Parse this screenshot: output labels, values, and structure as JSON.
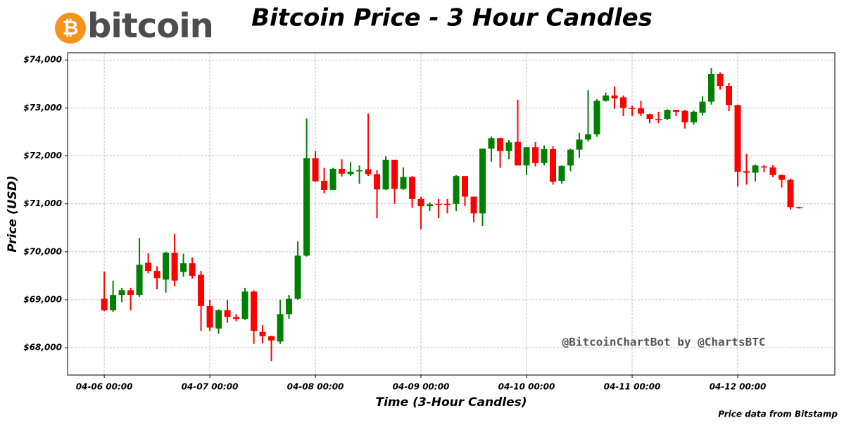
{
  "chart_data": {
    "type": "candlestick",
    "title": "Bitcoin Price - 3 Hour Candles",
    "logo_symbol": "₿",
    "logo_text": "bitcoin",
    "xlabel": "Time (3-Hour Candles)",
    "ylabel": "Price (USD)",
    "watermark": "@BitcoinChartBot by @ChartsBTC",
    "footnote": "Price data from Bitstamp",
    "up_color": "#008000",
    "down_color": "#ff0000",
    "grid": true,
    "xlim": [
      "04-05 15:40",
      "04-12 22:05"
    ],
    "xticks": [
      "04-06 00:00",
      "04-07 00:00",
      "04-08 00:00",
      "04-09 00:00",
      "04-10 00:00",
      "04-11 00:00",
      "04-12 00:00"
    ],
    "ylim": [
      67430,
      74150
    ],
    "yticks": [
      {
        "value": 68000,
        "label": "$68,000"
      },
      {
        "value": 69000,
        "label": "$69,000"
      },
      {
        "value": 70000,
        "label": "$70,000"
      },
      {
        "value": 71000,
        "label": "$71,000"
      },
      {
        "value": 72000,
        "label": "$72,000"
      },
      {
        "value": 73000,
        "label": "$73,000"
      },
      {
        "value": 74000,
        "label": "$74,000"
      }
    ],
    "x": [
      "04-06 00:00",
      "04-06 02:00",
      "04-06 04:00",
      "04-06 06:00",
      "04-06 08:00",
      "04-06 10:00",
      "04-06 12:00",
      "04-06 14:00",
      "04-06 16:00",
      "04-06 18:00",
      "04-06 20:00",
      "04-06 22:00",
      "04-07 00:00",
      "04-07 02:00",
      "04-07 04:00",
      "04-07 06:00",
      "04-07 08:00",
      "04-07 10:00",
      "04-07 12:00",
      "04-07 14:00",
      "04-07 16:00",
      "04-07 18:00",
      "04-07 20:00",
      "04-07 22:00",
      "04-08 00:00",
      "04-08 02:00",
      "04-08 04:00",
      "04-08 06:00",
      "04-08 08:00",
      "04-08 10:00",
      "04-08 12:00",
      "04-08 14:00",
      "04-08 16:00",
      "04-08 18:00",
      "04-08 20:00",
      "04-08 22:00",
      "04-09 00:00",
      "04-09 02:00",
      "04-09 04:00",
      "04-09 06:00",
      "04-09 08:00",
      "04-09 10:00",
      "04-09 12:00",
      "04-09 14:00",
      "04-09 16:00",
      "04-09 18:00",
      "04-09 20:00",
      "04-09 22:00",
      "04-10 00:00",
      "04-10 02:00",
      "04-10 04:00",
      "04-10 06:00",
      "04-10 08:00",
      "04-10 10:00",
      "04-10 12:00",
      "04-10 14:00",
      "04-10 16:00",
      "04-10 18:00",
      "04-10 20:00",
      "04-10 22:00",
      "04-11 00:00",
      "04-11 02:00",
      "04-11 04:00",
      "04-11 06:00",
      "04-11 08:00",
      "04-11 10:00",
      "04-11 12:00",
      "04-11 14:00",
      "04-11 16:00",
      "04-11 18:00",
      "04-11 20:00",
      "04-11 22:00",
      "04-12 00:00",
      "04-12 02:00",
      "04-12 04:00",
      "04-12 06:00",
      "04-12 08:00",
      "04-12 10:00",
      "04-12 12:00",
      "04-12 14:00"
    ],
    "open": [
      69020,
      68780,
      69100,
      69200,
      69100,
      69770,
      69600,
      69420,
      69980,
      69580,
      69760,
      69520,
      68870,
      68400,
      68780,
      68640,
      68600,
      69170,
      68330,
      68240,
      68130,
      68700,
      69020,
      69920,
      71950,
      71480,
      71290,
      71730,
      71620,
      71680,
      71720,
      71620,
      71300,
      71920,
      71310,
      71560,
      71100,
      70950,
      71000,
      71000,
      71000,
      71580,
      71150,
      70800,
      72150,
      72370,
      72100,
      72290,
      71800,
      72180,
      71850,
      72140,
      71480,
      71800,
      72130,
      72340,
      72450,
      73150,
      73260,
      73220,
      73000,
      72990,
      72870,
      72770,
      72770,
      72960,
      72940,
      72700,
      72900,
      73130,
      73710,
      73460,
      73060,
      71680,
      71650,
      71780,
      71760,
      71600,
      71500,
      70930
    ],
    "high": [
      69590,
      69400,
      69250,
      69250,
      70290,
      69970,
      69700,
      70000,
      70370,
      69960,
      69880,
      69600,
      69000,
      68800,
      69000,
      68700,
      69250,
      69200,
      68470,
      68250,
      69000,
      69100,
      70220,
      72780,
      72100,
      71750,
      71750,
      71930,
      71870,
      71800,
      72880,
      71700,
      71990,
      71910,
      71760,
      71580,
      71150,
      71030,
      71100,
      71100,
      71600,
      71550,
      71150,
      72150,
      72400,
      72380,
      72330,
      73170,
      72180,
      72290,
      72220,
      72200,
      71800,
      72150,
      72480,
      73370,
      73180,
      73320,
      73450,
      73260,
      73050,
      73150,
      72880,
      72920,
      72970,
      72960,
      72960,
      72950,
      73250,
      73830,
      73740,
      73520,
      73070,
      72040,
      71820,
      71810,
      71810,
      71610,
      71530,
      70940
    ],
    "low": [
      68760,
      68750,
      68950,
      68780,
      69060,
      69550,
      69220,
      69150,
      69280,
      69480,
      69440,
      68350,
      68350,
      68290,
      68520,
      68550,
      68580,
      68080,
      68090,
      67720,
      68080,
      68600,
      69000,
      69900,
      71450,
      71220,
      71290,
      71570,
      71580,
      71420,
      71580,
      70700,
      71290,
      71000,
      71290,
      70920,
      70470,
      70850,
      70700,
      70800,
      70850,
      70950,
      70620,
      70540,
      71880,
      71750,
      71930,
      71800,
      71600,
      71780,
      71800,
      71400,
      71420,
      71680,
      71960,
      72300,
      72400,
      73130,
      72980,
      72830,
      72830,
      72830,
      72680,
      72680,
      72750,
      72830,
      72570,
      72650,
      72840,
      73070,
      73380,
      72930,
      71360,
      71400,
      71470,
      71660,
      71560,
      71340,
      70880,
      70900
    ],
    "close": [
      68780,
      69100,
      69200,
      69100,
      69730,
      69600,
      69450,
      69980,
      69400,
      69760,
      69500,
      68870,
      68420,
      68780,
      68640,
      68600,
      69170,
      68350,
      68240,
      68150,
      68700,
      69020,
      69920,
      71950,
      71470,
      71290,
      71730,
      71630,
      71670,
      71700,
      71620,
      71300,
      71920,
      71310,
      71560,
      71100,
      70950,
      70990,
      70990,
      70980,
      71580,
      71150,
      70800,
      72150,
      72370,
      72100,
      72280,
      71800,
      72180,
      71850,
      72140,
      71460,
      71790,
      72130,
      72340,
      72450,
      73150,
      73260,
      73200,
      73000,
      72980,
      72880,
      72770,
      72760,
      72960,
      72920,
      72700,
      72920,
      73130,
      73710,
      73460,
      73060,
      71670,
      71650,
      71800,
      71760,
      71600,
      71500,
      70930,
      70910
    ]
  }
}
